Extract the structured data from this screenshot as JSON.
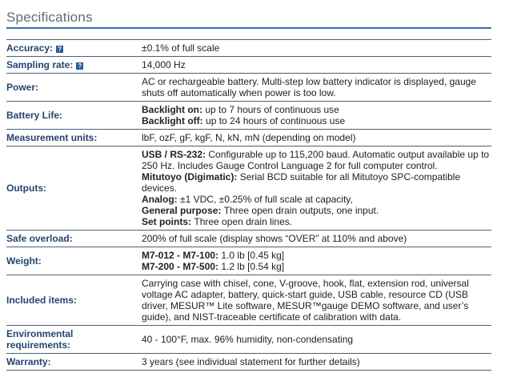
{
  "header": {
    "title": "Specifications"
  },
  "rows": [
    {
      "label": "Accuracy:",
      "help_icon": "?",
      "value": [
        {
          "text": "±0.1% of full scale"
        }
      ]
    },
    {
      "label": "Sampling rate:",
      "help_icon": "?",
      "value": [
        {
          "text": "14,000 Hz"
        }
      ]
    },
    {
      "label": "Power:",
      "value": [
        {
          "text": "AC or rechargeable battery. Multi-step low battery indicator is displayed, gauge shuts off automatically when power is too low."
        }
      ]
    },
    {
      "label": "Battery Life:",
      "value": [
        {
          "bold": "Backlight on:",
          "text": "up to 7 hours of continuous use"
        },
        {
          "bold": "Backlight off:",
          "text": "up to 24 hours of continuous use"
        }
      ]
    },
    {
      "label": "Measurement units:",
      "value": [
        {
          "text": "lbF, ozF, gF, kgF, N, kN, mN (depending on model)"
        }
      ]
    },
    {
      "label": "Outputs:",
      "value": [
        {
          "bold": "USB / RS-232:",
          "text": "Configurable up to 115,200 baud. Automatic output available up to 250 Hz. Includes Gauge Control Language 2 for full computer control."
        },
        {
          "bold": "Mitutoyo (Digimatic):",
          "text": "Serial BCD suitable for all Mitutoyo SPC-compatible devices."
        },
        {
          "bold": "Analog:",
          "text": "±1 VDC, ±0.25% of full scale at capacity,"
        },
        {
          "bold": "General purpose:",
          "text": "Three open drain outputs, one input."
        },
        {
          "bold": "Set points:",
          "text": "Three open drain lines."
        }
      ]
    },
    {
      "label": "Safe overload:",
      "value": [
        {
          "text": "200% of full scale (display shows “OVER” at 110% and above)"
        }
      ]
    },
    {
      "label": "Weight:",
      "value": [
        {
          "bold": "M7-012 - M7-100:",
          "text": "1.0 lb [0.45 kg]"
        },
        {
          "bold": "M7-200 - M7-500:",
          "text": "1.2 lb [0.54 kg]"
        }
      ]
    },
    {
      "label": "Included items:",
      "value": [
        {
          "text": "Carrying case with chisel, cone, V-groove, hook, flat, extension rod, universal voltage AC adapter, battery, quick-start guide, USB cable, resource CD (USB driver, MESUR™ Lite software, MESUR™gauge DEMO software, and user’s guide), and NIST-traceable certificate of calibration with data."
        }
      ]
    },
    {
      "label": "Environmental requirements:",
      "value": [
        {
          "text": "40 - 100°F, max. 96% humidity, non-condensating"
        }
      ]
    },
    {
      "label": "Warranty:",
      "value": [
        {
          "text": "3 years (see individual statement for further details)"
        }
      ]
    }
  ]
}
